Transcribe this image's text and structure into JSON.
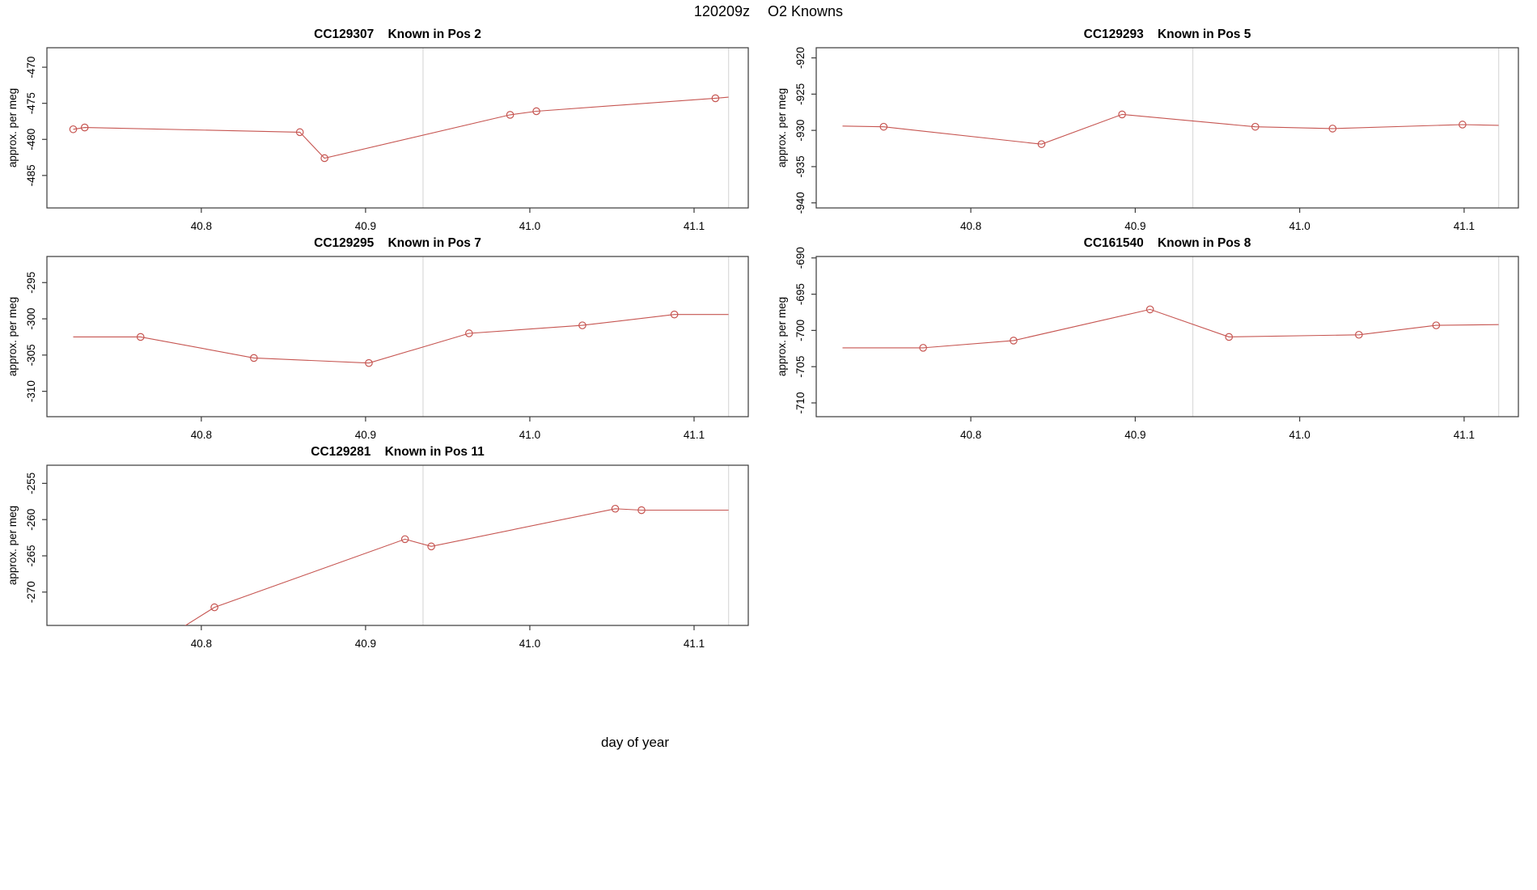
{
  "page_title": {
    "run_id": "120209z",
    "subtitle": "O2 Knowns"
  },
  "xlabel": "day of year",
  "style": {
    "series_color": "#c65551",
    "vline_color": "#dcdcdc",
    "border_color": "#3a3a3a",
    "text_color": "#000000",
    "background": "#ffffff"
  },
  "chart_data": [
    {
      "type": "line",
      "panel_id": "CC129307",
      "panel_subtitle": "Known in Pos 2",
      "ylabel": "approx. per meg",
      "xlabel": "day of year",
      "grid": "off",
      "marker": "open-circle",
      "xlim": [
        40.706,
        41.133
      ],
      "ylim": [
        -489.5,
        -467.3
      ],
      "xticks": [
        40.8,
        40.9,
        41.0,
        41.1
      ],
      "yticks": [
        -470,
        -475,
        -480,
        -485
      ],
      "vlines": [
        40.935,
        41.121
      ],
      "series": [
        {
          "name": "approx. per meg",
          "points": [
            [
              40.722,
              -478.6,
              1
            ],
            [
              40.729,
              -478.35,
              1
            ],
            [
              40.86,
              -479.0,
              1
            ],
            [
              40.875,
              -482.6,
              1
            ],
            [
              40.988,
              -476.6,
              1
            ],
            [
              41.004,
              -476.1,
              1
            ],
            [
              41.113,
              -474.3,
              1
            ],
            [
              41.121,
              -474.15,
              0
            ]
          ]
        }
      ]
    },
    {
      "type": "line",
      "panel_id": "CC129293",
      "panel_subtitle": "Known in Pos 5",
      "ylabel": "approx. per meg",
      "xlabel": "day of year",
      "grid": "off",
      "marker": "open-circle",
      "xlim": [
        40.706,
        41.133
      ],
      "ylim": [
        -940.7,
        -918.6
      ],
      "xticks": [
        40.8,
        40.9,
        41.0,
        41.1
      ],
      "yticks": [
        -920,
        -925,
        -930,
        -935,
        -940
      ],
      "vlines": [
        40.935,
        41.121
      ],
      "series": [
        {
          "name": "approx. per meg",
          "points": [
            [
              40.722,
              -929.4,
              0
            ],
            [
              40.747,
              -929.5,
              1
            ],
            [
              40.843,
              -931.9,
              1
            ],
            [
              40.892,
              -927.8,
              1
            ],
            [
              40.973,
              -929.5,
              1
            ],
            [
              41.02,
              -929.75,
              1
            ],
            [
              41.099,
              -929.2,
              1
            ],
            [
              41.121,
              -929.3,
              0
            ]
          ]
        }
      ]
    },
    {
      "type": "line",
      "panel_id": "CC129295",
      "panel_subtitle": "Known in Pos 7",
      "ylabel": "approx. per meg",
      "xlabel": "day of year",
      "grid": "off",
      "marker": "open-circle",
      "xlim": [
        40.706,
        41.133
      ],
      "ylim": [
        -313.5,
        -291.4
      ],
      "xticks": [
        40.8,
        40.9,
        41.0,
        41.1
      ],
      "yticks": [
        -295,
        -300,
        -305,
        -310
      ],
      "vlines": [
        40.935,
        41.121
      ],
      "series": [
        {
          "name": "approx. per meg",
          "points": [
            [
              40.722,
              -302.5,
              0
            ],
            [
              40.763,
              -302.5,
              1
            ],
            [
              40.832,
              -305.4,
              1
            ],
            [
              40.902,
              -306.1,
              1
            ],
            [
              40.963,
              -302.0,
              1
            ],
            [
              41.032,
              -300.9,
              1
            ],
            [
              41.088,
              -299.4,
              1
            ],
            [
              41.121,
              -299.4,
              0
            ]
          ]
        }
      ]
    },
    {
      "type": "line",
      "panel_id": "CC161540",
      "panel_subtitle": "Known in Pos 8",
      "ylabel": "approx. per meg",
      "xlabel": "day of year",
      "grid": "off",
      "marker": "open-circle",
      "xlim": [
        40.706,
        41.133
      ],
      "ylim": [
        -711.9,
        -689.8
      ],
      "xticks": [
        40.8,
        40.9,
        41.0,
        41.1
      ],
      "yticks": [
        -690,
        -695,
        -700,
        -705,
        -710
      ],
      "vlines": [
        40.935,
        41.121
      ],
      "series": [
        {
          "name": "approx. per meg",
          "points": [
            [
              40.722,
              -702.4,
              0
            ],
            [
              40.771,
              -702.4,
              1
            ],
            [
              40.826,
              -701.4,
              1
            ],
            [
              40.909,
              -697.1,
              1
            ],
            [
              40.957,
              -700.9,
              1
            ],
            [
              41.036,
              -700.6,
              1
            ],
            [
              41.083,
              -699.3,
              1
            ],
            [
              41.121,
              -699.2,
              0
            ]
          ]
        }
      ]
    },
    {
      "type": "line",
      "panel_id": "CC129281",
      "panel_subtitle": "Known in Pos 11",
      "ylabel": "approx. per meg",
      "xlabel": "day of year",
      "grid": "off",
      "marker": "open-circle",
      "xlim": [
        40.706,
        41.133
      ],
      "ylim": [
        -274.6,
        -252.5
      ],
      "xticks": [
        40.8,
        40.9,
        41.0,
        41.1
      ],
      "yticks": [
        -255,
        -260,
        -265,
        -270
      ],
      "vlines": [
        40.935,
        41.121
      ],
      "series": [
        {
          "name": "approx. per meg",
          "points": [
            [
              40.77,
              -277.5,
              0
            ],
            [
              40.808,
              -272.1,
              1
            ],
            [
              40.924,
              -262.7,
              1
            ],
            [
              40.94,
              -263.7,
              1
            ],
            [
              41.052,
              -258.5,
              1
            ],
            [
              41.068,
              -258.7,
              1
            ],
            [
              41.121,
              -258.7,
              0
            ]
          ]
        }
      ]
    }
  ]
}
